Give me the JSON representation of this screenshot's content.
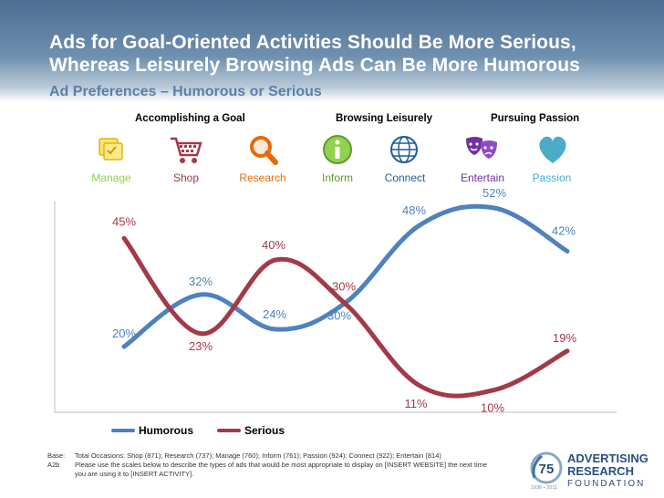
{
  "title": {
    "line1": "Ads for Goal-Oriented Activities Should Be More Serious,",
    "line2": "Whereas Leisurely Browsing Ads Can Be More Humorous"
  },
  "subtitle": "Ad Preferences – Humorous or Serious",
  "groups": {
    "goal": "Accomplishing a Goal",
    "browse": "Browsing Leisurely",
    "passion": "Pursuing Passion"
  },
  "colors": {
    "humorous": "#4f81bd",
    "serious": "#a33a47",
    "label_green": "#92d050",
    "label_orange": "#e36c09",
    "label_blue": "#1f5d9b",
    "label_purple": "#7030a0",
    "label_sky": "#4bacc6"
  },
  "chart_data": {
    "type": "line",
    "title": "Ad Preferences – Humorous or Serious",
    "categories": [
      "Manage",
      "Shop",
      "Research",
      "Inform",
      "Connect",
      "Entertain",
      "Passion"
    ],
    "series": [
      {
        "name": "Humorous",
        "values": [
          20,
          32,
          24,
          30,
          48,
          52,
          42
        ],
        "labels": [
          "20%",
          "32%",
          "24%",
          "30%",
          "48%",
          "52%",
          "42%"
        ]
      },
      {
        "name": "Serious",
        "values": [
          45,
          23,
          40,
          30,
          11,
          10,
          19
        ],
        "labels": [
          "45%",
          "23%",
          "40%",
          "30%",
          "11%",
          "10%",
          "19%"
        ]
      }
    ],
    "ylim": [
      0,
      60
    ],
    "xlabel": "",
    "ylabel": "",
    "legend": "bottom-left"
  },
  "legend": {
    "humorous": "Humorous",
    "serious": "Serious"
  },
  "footer": {
    "base_key": "Base:",
    "base_text": "Total Occasions: Shop (871); Research (737); Manage (760); Inform (761); Passion (924); Connect (922); Entertain (814)",
    "q_key": "A2b",
    "q_text": "Please use the scales below to describe the types of ads that would be most appropriate to display on [INSERT WEBSITE] the next time you are using it to [INSERT ACTIVITY]."
  },
  "logo": {
    "line1": "ADVERTISING",
    "line2": "RESEARCH",
    "line3": "FOUNDATION",
    "badge": "75",
    "years": "1936 • 2011"
  },
  "icons": [
    "manage-icon",
    "shop-icon",
    "research-icon",
    "inform-icon",
    "connect-icon",
    "entertain-icon",
    "passion-icon"
  ]
}
